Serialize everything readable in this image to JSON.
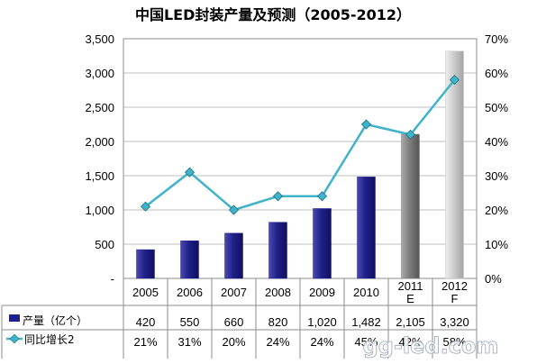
{
  "chart_data": {
    "type": "bar",
    "title": "中国LED封装产量及预测（2005-2012）",
    "categories": [
      [
        "2005"
      ],
      [
        "2006"
      ],
      [
        "2007"
      ],
      [
        "2008"
      ],
      [
        "2009"
      ],
      [
        "2010"
      ],
      [
        "2011",
        "E"
      ],
      [
        "2012",
        "F"
      ]
    ],
    "bar_series": {
      "name": "产量（亿个）",
      "values": [
        420,
        550,
        660,
        820,
        1020,
        1482,
        2105,
        3320
      ],
      "labels": [
        "420",
        "550",
        "660",
        "820",
        "1,020",
        "1,482",
        "2,105",
        "3,320"
      ],
      "colors": [
        "#20208a",
        "#20208a",
        "#20208a",
        "#20208a",
        "#20208a",
        "#20208a",
        "#808080",
        "#c8c8c8"
      ]
    },
    "line_series": {
      "name": "同比增长2",
      "values": [
        21,
        31,
        20,
        24,
        24,
        45,
        42,
        58
      ],
      "labels": [
        "21%",
        "31%",
        "20%",
        "24%",
        "24%",
        "45%",
        "42%",
        "58%"
      ],
      "color": "#3fb3c9"
    },
    "y_left": {
      "min": 0,
      "max": 3500,
      "ticks": [
        0,
        500,
        1000,
        1500,
        2000,
        2500,
        3000,
        3500
      ],
      "tick_labels": [
        "-",
        "500",
        "1,000",
        "1,500",
        "2,000",
        "2,500",
        "3,000",
        "3,500"
      ]
    },
    "y_right": {
      "min": 0,
      "max": 70,
      "ticks": [
        0,
        10,
        20,
        30,
        40,
        50,
        60,
        70
      ],
      "tick_labels": [
        "0%",
        "10%",
        "20%",
        "30%",
        "40%",
        "50%",
        "60%",
        "70%"
      ]
    },
    "grid": true
  },
  "watermark": "gg-led.com"
}
